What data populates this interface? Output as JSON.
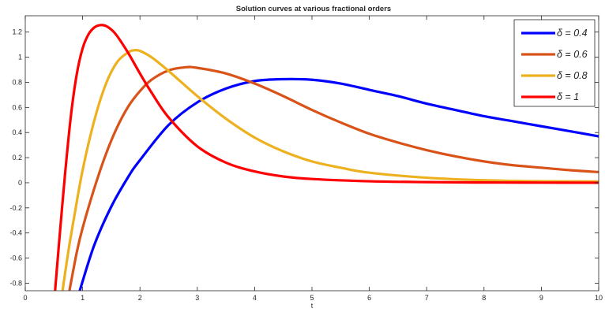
{
  "chart_data": {
    "type": "line",
    "title": "Solution curves at various fractional orders",
    "xlabel": "t",
    "ylabel": "",
    "xlim": [
      0,
      10
    ],
    "ylim": [
      -0.86,
      1.33
    ],
    "grid": false,
    "legend_position": "top-right",
    "x_ticks": [
      "0",
      "1",
      "2",
      "3",
      "4",
      "5",
      "6",
      "7",
      "8",
      "9",
      "10"
    ],
    "y_ticks": [
      "-0.8",
      "-0.6",
      "-0.4",
      "-0.2",
      "0",
      "0.2",
      "0.4",
      "0.6",
      "0.8",
      "1",
      "1.2"
    ],
    "series": [
      {
        "name": "δ = 0.4",
        "color": "#0000ff",
        "x": [
          0.95,
          1.2,
          1.5,
          1.8,
          2.0,
          2.5,
          3.0,
          3.5,
          4.0,
          4.5,
          5.0,
          5.5,
          6.0,
          6.5,
          7.0,
          7.5,
          8.0,
          8.5,
          9.0,
          9.5,
          10.0
        ],
        "y": [
          -0.86,
          -0.5,
          -0.19,
          0.05,
          0.18,
          0.46,
          0.64,
          0.75,
          0.81,
          0.825,
          0.82,
          0.79,
          0.74,
          0.69,
          0.63,
          0.58,
          0.53,
          0.49,
          0.45,
          0.41,
          0.37
        ]
      },
      {
        "name": "δ = 0.6",
        "color": "#d95319",
        "x": [
          0.77,
          0.9,
          1.0,
          1.2,
          1.4,
          1.6,
          1.8,
          2.0,
          2.2,
          2.5,
          2.8,
          3.0,
          3.5,
          4.0,
          4.5,
          5.0,
          5.5,
          6.0,
          6.5,
          7.0,
          7.5,
          8.0,
          8.5,
          9.0,
          9.5,
          10.0
        ],
        "y": [
          -0.86,
          -0.55,
          -0.36,
          -0.05,
          0.22,
          0.44,
          0.61,
          0.73,
          0.82,
          0.895,
          0.92,
          0.915,
          0.87,
          0.79,
          0.69,
          0.58,
          0.48,
          0.39,
          0.32,
          0.26,
          0.21,
          0.17,
          0.14,
          0.12,
          0.1,
          0.085
        ]
      },
      {
        "name": "δ = 0.8",
        "color": "#edb120",
        "x": [
          0.65,
          0.75,
          0.85,
          1.0,
          1.2,
          1.4,
          1.6,
          1.8,
          1.9,
          2.0,
          2.2,
          2.5,
          3.0,
          3.5,
          4.0,
          4.5,
          5.0,
          5.5,
          6.0,
          7.0,
          8.0,
          9.0,
          10.0
        ],
        "y": [
          -0.86,
          -0.55,
          -0.28,
          0.1,
          0.49,
          0.78,
          0.96,
          1.04,
          1.055,
          1.05,
          1.0,
          0.89,
          0.69,
          0.51,
          0.36,
          0.25,
          0.17,
          0.12,
          0.08,
          0.04,
          0.02,
          0.012,
          0.01
        ]
      },
      {
        "name": "δ = 1",
        "color": "#ff0000",
        "x": [
          0.52,
          0.6,
          0.7,
          0.8,
          0.9,
          1.0,
          1.1,
          1.2,
          1.3,
          1.4,
          1.5,
          1.6,
          1.8,
          2.0,
          2.2,
          2.5,
          3.0,
          3.5,
          4.0,
          4.5,
          5.0,
          6.0,
          7.0,
          8.0,
          9.0,
          10.0
        ],
        "y": [
          -0.86,
          -0.42,
          0.1,
          0.55,
          0.87,
          1.07,
          1.18,
          1.235,
          1.255,
          1.25,
          1.22,
          1.17,
          1.03,
          0.87,
          0.72,
          0.52,
          0.29,
          0.16,
          0.09,
          0.05,
          0.03,
          0.012,
          0.005,
          0.002,
          0.001,
          0.0
        ]
      }
    ]
  }
}
